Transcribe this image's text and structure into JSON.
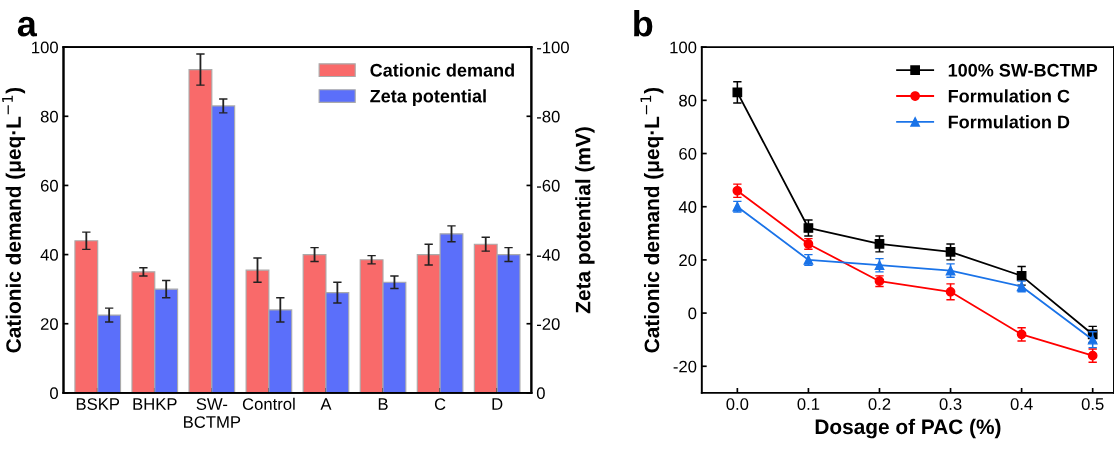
{
  "chart_data": [
    {
      "type": "bar",
      "annotations": [
        "a"
      ],
      "ylabel": "Cationic demand (μeq·L$^{−1}$)",
      "y2label": "Zeta potential (mV)",
      "categories": [
        "BSKP",
        "BHKP",
        "SW-\nBCTMP",
        "Control",
        "A",
        "B",
        "C",
        "D"
      ],
      "series": [
        {
          "name": "Cationic demand",
          "color": "#f96a6a",
          "values": [
            44,
            35,
            93.5,
            35.5,
            40,
            38.5,
            40,
            43
          ],
          "errors": [
            2.5,
            1.2,
            4.5,
            3.5,
            2,
            1.2,
            3,
            2
          ]
        },
        {
          "name": "Zeta potential",
          "color": "#5b6ffa",
          "axis": "y2",
          "values": [
            -22.5,
            -30,
            -83,
            -24,
            -29,
            -32,
            -46,
            -40
          ],
          "errors": [
            2,
            2.5,
            2,
            3.5,
            3,
            1.8,
            2.3,
            2
          ]
        }
      ],
      "ylim": [
        0,
        100
      ],
      "yticks": [
        0,
        20,
        40,
        60,
        80,
        100
      ],
      "y2lim": [
        0,
        -100
      ],
      "y2ticks": [
        0,
        -20,
        -40,
        -60,
        -80,
        -100
      ],
      "legend": "top right",
      "grid": false
    },
    {
      "type": "line",
      "annotations": [
        "b"
      ],
      "xlabel": "Dosage of PAC (%)",
      "ylabel": "Cationic demand (μeq·L$^{−1}$)",
      "x": [
        0.0,
        0.1,
        0.2,
        0.3,
        0.4,
        0.5
      ],
      "series": [
        {
          "name": "100% SW-BCTMP",
          "color": "#000000",
          "marker": "square",
          "values": [
            83,
            32,
            26,
            23,
            14,
            -8
          ],
          "errors": [
            4,
            3,
            3,
            3,
            3.5,
            3
          ]
        },
        {
          "name": "Formulation C",
          "color": "#ff0000",
          "marker": "circle",
          "values": [
            46,
            26,
            12,
            8,
            -8,
            -16
          ],
          "errors": [
            2.5,
            2,
            2,
            3,
            2.5,
            2.5
          ]
        },
        {
          "name": "Formulation D",
          "color": "#1a73e8",
          "marker": "triangle",
          "values": [
            40,
            20,
            18,
            16,
            10,
            -10
          ],
          "errors": [
            2,
            2,
            2.5,
            2.5,
            2,
            3
          ]
        }
      ],
      "xlim": [
        -0.05,
        0.53
      ],
      "xticks": [
        {
          "value": 0.0,
          "label": "0.0"
        },
        {
          "value": 0.1,
          "label": "0.1"
        },
        {
          "value": 0.2,
          "label": "0.2"
        },
        {
          "value": 0.3,
          "label": "0.3"
        },
        {
          "value": 0.4,
          "label": "0.4"
        },
        {
          "value": 0.5,
          "label": "0.5"
        }
      ],
      "ylim": [
        -30,
        100
      ],
      "yticks": [
        -20,
        0,
        20,
        40,
        60,
        80,
        100
      ],
      "legend": "top right",
      "grid": false,
      "line_style": "solid"
    }
  ]
}
